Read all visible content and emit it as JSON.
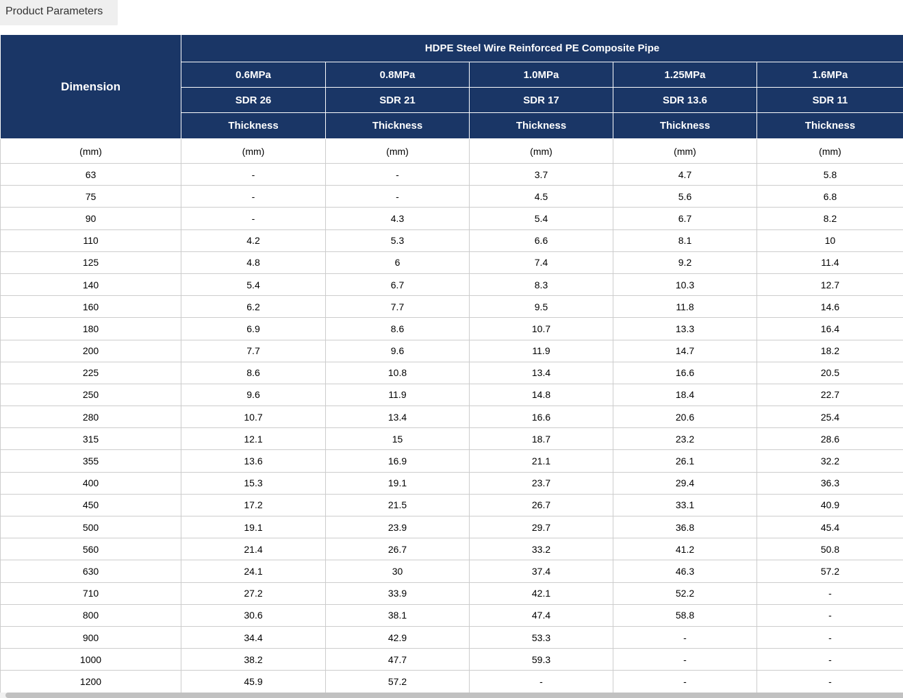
{
  "tab": {
    "label": "Product Parameters"
  },
  "table": {
    "dimension_header": "Dimension",
    "title": "HDPE Steel Wire Reinforced PE Composite Pipe",
    "pressures": [
      "0.6MPa",
      "0.8MPa",
      "1.0MPa",
      "1.25MPa",
      "1.6MPa"
    ],
    "sdr": [
      "SDR 26",
      "SDR 21",
      "SDR 17",
      "SDR 13.6",
      "SDR 11"
    ],
    "thickness_label": "Thickness",
    "unit": "(mm)",
    "rows": [
      {
        "dimension": "63",
        "values": [
          "-",
          "-",
          "3.7",
          "4.7",
          "5.8"
        ]
      },
      {
        "dimension": "75",
        "values": [
          "-",
          "-",
          "4.5",
          "5.6",
          "6.8"
        ]
      },
      {
        "dimension": "90",
        "values": [
          "-",
          "4.3",
          "5.4",
          "6.7",
          "8.2"
        ]
      },
      {
        "dimension": "110",
        "values": [
          "4.2",
          "5.3",
          "6.6",
          "8.1",
          "10"
        ]
      },
      {
        "dimension": "125",
        "values": [
          "4.8",
          "6",
          "7.4",
          "9.2",
          "11.4"
        ]
      },
      {
        "dimension": "140",
        "values": [
          "5.4",
          "6.7",
          "8.3",
          "10.3",
          "12.7"
        ]
      },
      {
        "dimension": "160",
        "values": [
          "6.2",
          "7.7",
          "9.5",
          "11.8",
          "14.6"
        ]
      },
      {
        "dimension": "180",
        "values": [
          "6.9",
          "8.6",
          "10.7",
          "13.3",
          "16.4"
        ]
      },
      {
        "dimension": "200",
        "values": [
          "7.7",
          "9.6",
          "11.9",
          "14.7",
          "18.2"
        ]
      },
      {
        "dimension": "225",
        "values": [
          "8.6",
          "10.8",
          "13.4",
          "16.6",
          "20.5"
        ]
      },
      {
        "dimension": "250",
        "values": [
          "9.6",
          "11.9",
          "14.8",
          "18.4",
          "22.7"
        ]
      },
      {
        "dimension": "280",
        "values": [
          "10.7",
          "13.4",
          "16.6",
          "20.6",
          "25.4"
        ]
      },
      {
        "dimension": "315",
        "values": [
          "12.1",
          "15",
          "18.7",
          "23.2",
          "28.6"
        ]
      },
      {
        "dimension": "355",
        "values": [
          "13.6",
          "16.9",
          "21.1",
          "26.1",
          "32.2"
        ]
      },
      {
        "dimension": "400",
        "values": [
          "15.3",
          "19.1",
          "23.7",
          "29.4",
          "36.3"
        ]
      },
      {
        "dimension": "450",
        "values": [
          "17.2",
          "21.5",
          "26.7",
          "33.1",
          "40.9"
        ]
      },
      {
        "dimension": "500",
        "values": [
          "19.1",
          "23.9",
          "29.7",
          "36.8",
          "45.4"
        ]
      },
      {
        "dimension": "560",
        "values": [
          "21.4",
          "26.7",
          "33.2",
          "41.2",
          "50.8"
        ]
      },
      {
        "dimension": "630",
        "values": [
          "24.1",
          "30",
          "37.4",
          "46.3",
          "57.2"
        ]
      },
      {
        "dimension": "710",
        "values": [
          "27.2",
          "33.9",
          "42.1",
          "52.2",
          "-"
        ]
      },
      {
        "dimension": "800",
        "values": [
          "30.6",
          "38.1",
          "47.4",
          "58.8",
          "-"
        ]
      },
      {
        "dimension": "900",
        "values": [
          "34.4",
          "42.9",
          "53.3",
          "-",
          "-"
        ]
      },
      {
        "dimension": "1000",
        "values": [
          "38.2",
          "47.7",
          "59.3",
          "-",
          "-"
        ]
      },
      {
        "dimension": "1200",
        "values": [
          "45.9",
          "57.2",
          "-",
          "-",
          "-"
        ]
      }
    ]
  },
  "colors": {
    "header_bg": "#1a3666",
    "header_text": "#ffffff",
    "body_border": "#cccccc",
    "tab_bg": "#efefef",
    "scrollbar_track": "#f1f1f1",
    "scrollbar_thumb": "#c1c1c1"
  }
}
